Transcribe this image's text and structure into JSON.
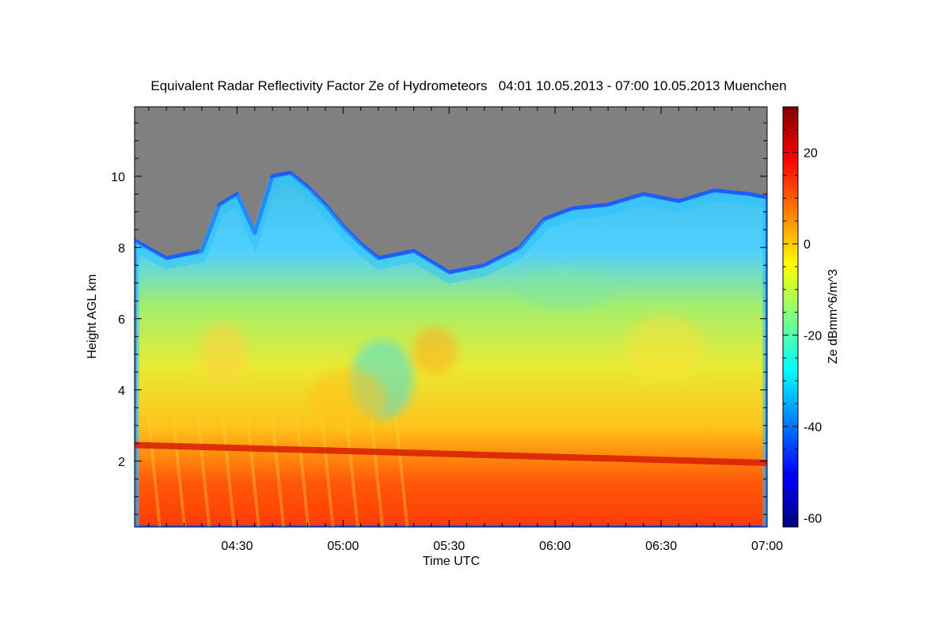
{
  "chart_data": {
    "type": "heatmap",
    "title": "Equivalent Radar Reflectivity Factor Ze of Hydrometeors   04:01 10.05.2013 - 07:00 10.05.2013 Muenchen",
    "xlabel": "Time UTC",
    "ylabel": "Height AGL km",
    "colorbar_label": "Ze dBmm^6/m^3",
    "x_range": [
      "04:01",
      "07:00"
    ],
    "ylim": [
      0.15,
      11.95
    ],
    "x_ticks": [
      "04:30",
      "05:00",
      "05:30",
      "06:00",
      "06:30",
      "07:00"
    ],
    "y_ticks": [
      2,
      4,
      6,
      8,
      10
    ],
    "colorbar_range": [
      -62,
      30
    ],
    "colorbar_ticks": [
      20,
      0,
      -20,
      -40,
      -60
    ],
    "no_signal_color": "#808080",
    "colormap": [
      "#00007f",
      "#0000ff",
      "#007fff",
      "#00ffff",
      "#7fff7f",
      "#ffff00",
      "#ff7f00",
      "#ff0000",
      "#7f0000"
    ],
    "cloud_top_km": [
      [
        "04:01",
        8.2
      ],
      [
        "04:10",
        7.7
      ],
      [
        "04:20",
        7.9
      ],
      [
        "04:25",
        9.2
      ],
      [
        "04:30",
        9.5
      ],
      [
        "04:35",
        8.4
      ],
      [
        "04:40",
        10.0
      ],
      [
        "04:45",
        10.1
      ],
      [
        "04:50",
        9.7
      ],
      [
        "04:55",
        9.2
      ],
      [
        "05:00",
        8.6
      ],
      [
        "05:05",
        8.1
      ],
      [
        "05:10",
        7.7
      ],
      [
        "05:20",
        7.9
      ],
      [
        "05:30",
        7.3
      ],
      [
        "05:40",
        7.5
      ],
      [
        "05:50",
        8.0
      ],
      [
        "05:57",
        8.8
      ],
      [
        "06:05",
        9.1
      ],
      [
        "06:15",
        9.2
      ],
      [
        "06:25",
        9.5
      ],
      [
        "06:35",
        9.3
      ],
      [
        "06:45",
        9.6
      ],
      [
        "06:55",
        9.5
      ],
      [
        "07:00",
        9.4
      ]
    ],
    "melting_layer_km": [
      [
        "04:01",
        2.45
      ],
      [
        "07:00",
        1.95
      ]
    ]
  }
}
